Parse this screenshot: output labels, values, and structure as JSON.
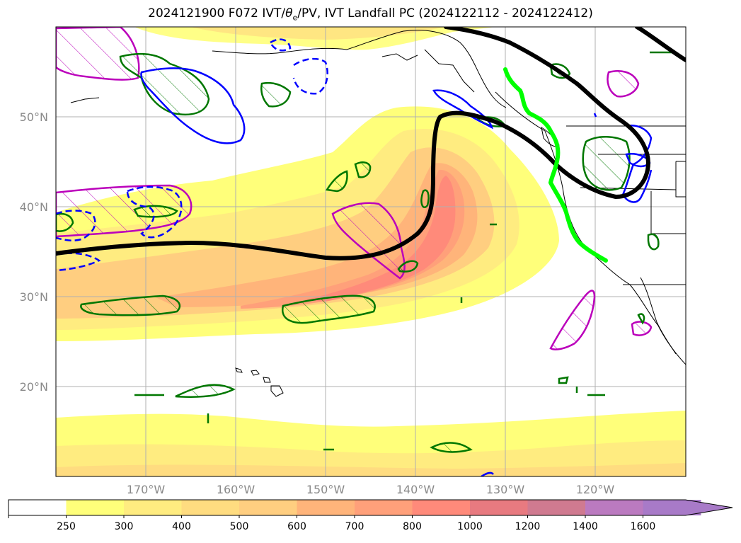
{
  "title": {
    "prefix": "2024121900 F072 IVT/",
    "theta": "θ",
    "sub": "e",
    "suffix": "/PV, IVT Landfall PC (2024122112 - 2024122412)"
  },
  "map": {
    "lon_range": [
      -180,
      -110
    ],
    "lat_range": [
      10,
      60
    ],
    "lat_labels": [
      "50°N",
      "40°N",
      "30°N",
      "20°N"
    ],
    "lon_labels": [
      "170°W",
      "160°W",
      "150°W",
      "140°W",
      "130°W",
      "120°W"
    ],
    "lat_values": [
      50,
      40,
      30,
      20
    ],
    "lon_values": [
      -170,
      -160,
      -150,
      -140,
      -130,
      -120
    ]
  },
  "colorbar": {
    "ticks": [
      "250",
      "300",
      "400",
      "500",
      "600",
      "700",
      "800",
      "1000",
      "1200",
      "1400",
      "1600"
    ],
    "colors": [
      "#ffffff",
      "#ffff7a",
      "#ffec80",
      "#ffdc80",
      "#ffce80",
      "#ffb47a",
      "#ffa07a",
      "#ff8a7a",
      "#e87a80",
      "#d07a90",
      "#bb7ac0",
      "#a87ac8"
    ],
    "extend": "max"
  },
  "legend_colors": {
    "ivt_fill_low": "#ffff7a",
    "ivt_fill_high": "#ff8a7a",
    "landfall_line": "#00ff00",
    "pc_line": "#000000",
    "pv_contour": "#bb00bb",
    "theta_e_warm": "#007700",
    "theta_e_cold": "#0000ff"
  }
}
